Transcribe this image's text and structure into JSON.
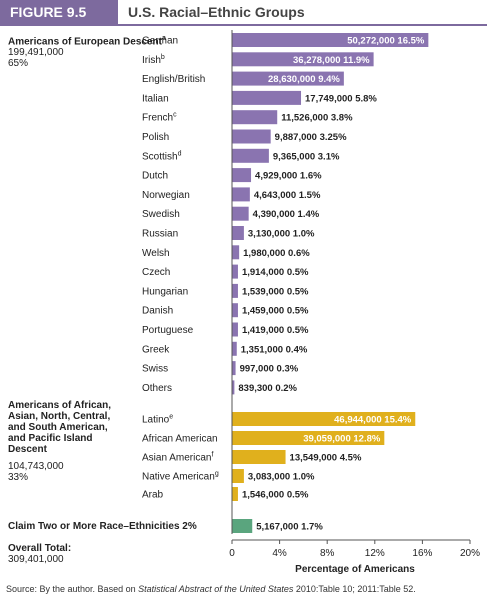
{
  "header": {
    "figure_label": "FIGURE 9.5",
    "title": "U.S. Racial–Ethnic Groups"
  },
  "groups": [
    {
      "name": "Americans of European Descent",
      "superscript": "a",
      "total": "199,491,000",
      "share": "65%"
    },
    {
      "name": "Americans of African, Asian, North, Central, and South American, and Pacific Island Descent",
      "superscript": "",
      "total": "104,743,000",
      "share": "33%"
    }
  ],
  "claim_two": "Claim Two or More Race–Ethnicities 2%",
  "overall": {
    "label": "Overall Total:",
    "value": "309,401,000"
  },
  "source": {
    "prefix": "Source: By the author. Based on ",
    "italic": "Statistical Abstract of the United States",
    "suffix": " 2010:Table 10; 2011:Table 52."
  },
  "colors": {
    "european": "#8a74b0",
    "other": "#e0b01d",
    "multi": "#5aa57e",
    "header": "#7d6a9e"
  },
  "chart_data": {
    "type": "bar",
    "orientation": "horizontal",
    "xlabel": "Percentage of Americans",
    "xlim": [
      0,
      20
    ],
    "xticks": [
      "0",
      "4%",
      "8%",
      "12%",
      "16%",
      "20%"
    ],
    "rows": [
      {
        "label": "German",
        "sup": "",
        "count": "50,272,000",
        "pct_label": "16.5%",
        "value": 16.5,
        "group": "european"
      },
      {
        "label": "Irish",
        "sup": "b",
        "count": "36,278,000",
        "pct_label": "11.9%",
        "value": 11.9,
        "group": "european"
      },
      {
        "label": "English/British",
        "sup": "",
        "count": "28,630,000",
        "pct_label": "9.4%",
        "value": 9.4,
        "group": "european"
      },
      {
        "label": "Italian",
        "sup": "",
        "count": "17,749,000",
        "pct_label": "5.8%",
        "value": 5.8,
        "group": "european"
      },
      {
        "label": "French",
        "sup": "c",
        "count": "11,526,000",
        "pct_label": "3.8%",
        "value": 3.8,
        "group": "european"
      },
      {
        "label": "Polish",
        "sup": "",
        "count": "9,887,000",
        "pct_label": "3.25%",
        "value": 3.25,
        "group": "european"
      },
      {
        "label": "Scottish",
        "sup": "d",
        "count": "9,365,000",
        "pct_label": "3.1%",
        "value": 3.1,
        "group": "european"
      },
      {
        "label": "Dutch",
        "sup": "",
        "count": "4,929,000",
        "pct_label": "1.6%",
        "value": 1.6,
        "group": "european"
      },
      {
        "label": "Norwegian",
        "sup": "",
        "count": "4,643,000",
        "pct_label": "1.5%",
        "value": 1.5,
        "group": "european"
      },
      {
        "label": "Swedish",
        "sup": "",
        "count": "4,390,000",
        "pct_label": "1.4%",
        "value": 1.4,
        "group": "european"
      },
      {
        "label": "Russian",
        "sup": "",
        "count": "3,130,000",
        "pct_label": "1.0%",
        "value": 1.0,
        "group": "european"
      },
      {
        "label": "Welsh",
        "sup": "",
        "count": "1,980,000",
        "pct_label": "0.6%",
        "value": 0.6,
        "group": "european"
      },
      {
        "label": "Czech",
        "sup": "",
        "count": "1,914,000",
        "pct_label": "0.5%",
        "value": 0.5,
        "group": "european"
      },
      {
        "label": "Hungarian",
        "sup": "",
        "count": "1,539,000",
        "pct_label": "0.5%",
        "value": 0.5,
        "group": "european"
      },
      {
        "label": "Danish",
        "sup": "",
        "count": "1,459,000",
        "pct_label": "0.5%",
        "value": 0.5,
        "group": "european"
      },
      {
        "label": "Portuguese",
        "sup": "",
        "count": "1,419,000",
        "pct_label": "0.5%",
        "value": 0.5,
        "group": "european"
      },
      {
        "label": "Greek",
        "sup": "",
        "count": "1,351,000",
        "pct_label": "0.4%",
        "value": 0.4,
        "group": "european"
      },
      {
        "label": "Swiss",
        "sup": "",
        "count": "997,000",
        "pct_label": "0.3%",
        "value": 0.3,
        "group": "european"
      },
      {
        "label": "Others",
        "sup": "",
        "count": "839,300",
        "pct_label": "0.2%",
        "value": 0.2,
        "group": "european"
      },
      {
        "label": "Latino",
        "sup": "e",
        "count": "46,944,000",
        "pct_label": "15.4%",
        "value": 15.4,
        "group": "other"
      },
      {
        "label": "African American",
        "sup": "",
        "count": "39,059,000",
        "pct_label": "12.8%",
        "value": 12.8,
        "group": "other"
      },
      {
        "label": "Asian American",
        "sup": "f",
        "count": "13,549,000",
        "pct_label": "4.5%",
        "value": 4.5,
        "group": "other"
      },
      {
        "label": "Native American",
        "sup": "g",
        "count": "3,083,000",
        "pct_label": "1.0%",
        "value": 1.0,
        "group": "other"
      },
      {
        "label": "Arab",
        "sup": "",
        "count": "1,546,000",
        "pct_label": "0.5%",
        "value": 0.5,
        "group": "other"
      },
      {
        "label": "",
        "sup": "",
        "count": "5,167,000",
        "pct_label": "1.7%",
        "value": 1.7,
        "group": "multi"
      }
    ]
  }
}
